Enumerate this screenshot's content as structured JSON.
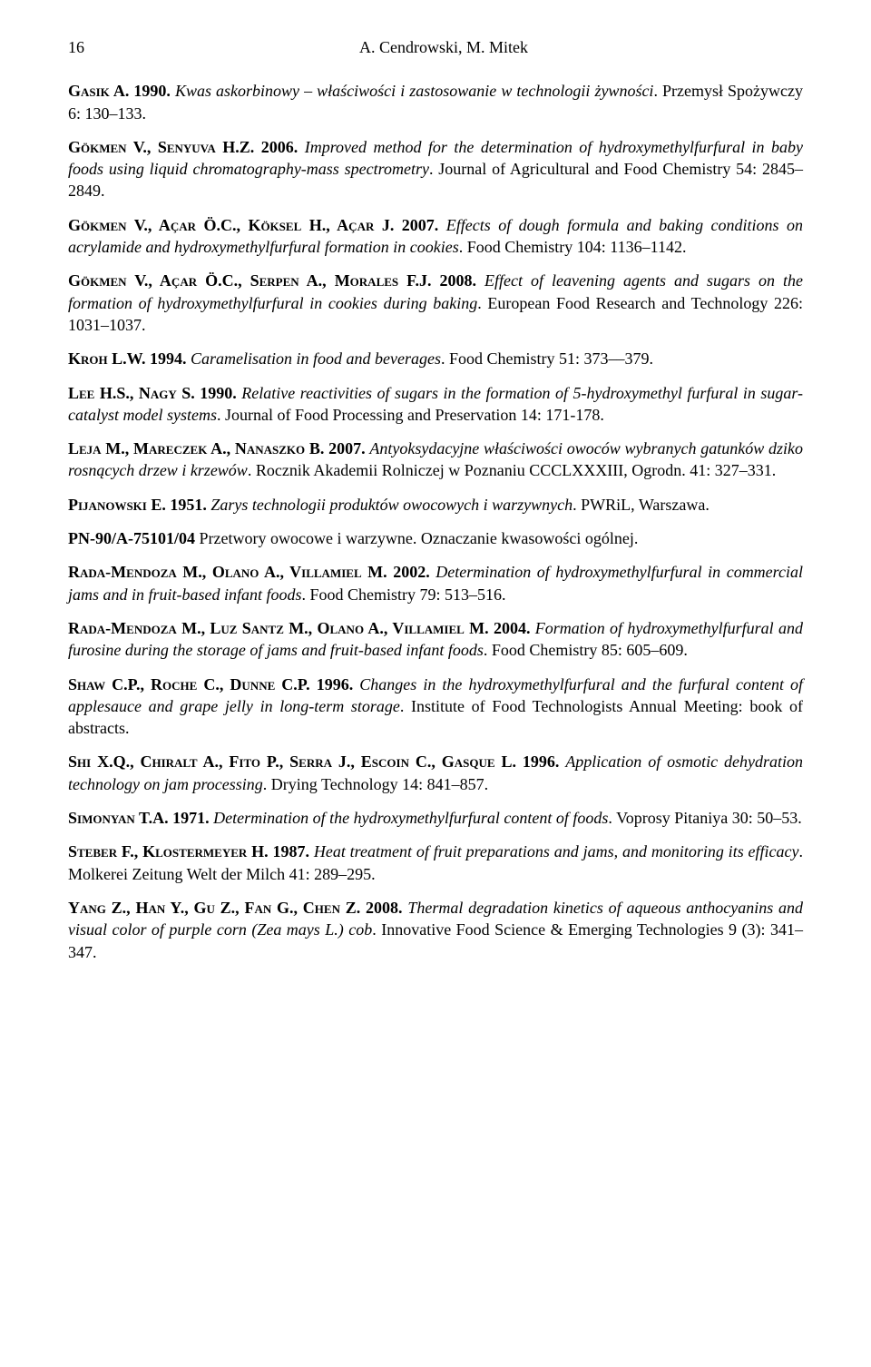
{
  "page_number": "16",
  "header_authors": "A. Cendrowski, M. Mitek",
  "references": [
    {
      "authors": "Gasik A.",
      "year": "1990.",
      "title": "Kwas askorbinowy – właściwości i zastosowanie w technologii żywności",
      "source": ". Przemysł Spożywczy 6: 130–133."
    },
    {
      "authors": "Gökmen V., Senyuva H.Z.",
      "year": "2006.",
      "title": "Improved method for the determination of hydroxymethylfurfural in baby foods using liquid chromatography-mass spectrometry",
      "source": ". Journal of Agricultural and Food Chemistry 54: 2845–2849."
    },
    {
      "authors": "Gökmen V., Açar Ö.C., Köksel H., Açar J.",
      "year": "2007.",
      "title": "Effects of dough formula and baking conditions on acrylamide and hydroxymethylfurfural formation in cookies",
      "source": ". Food Chemistry 104: 1136–1142."
    },
    {
      "authors": "Gökmen V., Açar Ö.C., Serpen A., Morales F.J.",
      "year": "2008.",
      "title": "Effect of leavening agents and sugars on the formation of hydroxymethylfurfural in cookies during baking",
      "source": ". European Food Research and Technology 226: 1031–1037."
    },
    {
      "authors": "Kroh L.W.",
      "year": "1994.",
      "title": "Caramelisation in food and beverages",
      "source": ". Food Chemistry 51: 373––379."
    },
    {
      "authors": "Lee H.S., Nagy S.",
      "year": "1990.",
      "title": "Relative reactivities of sugars in the formation of 5-hydroxymethyl furfural in sugar-catalyst model systems",
      "source": ". Journal of Food Processing and Preservation 14: 171-178."
    },
    {
      "authors": "Leja M., Mareczek A., Nanaszko B.",
      "year": "2007.",
      "title": "Antyoksydacyjne właściwości owoców wybranych gatunków dziko rosnących drzew i krzewów",
      "source": ". Rocznik Akademii Rolniczej w Poznaniu CCCLXXXIII, Ogrodn. 41: 327–331."
    },
    {
      "authors": "Pijanowski E.",
      "year": "1951.",
      "title": "Zarys technologii produktów owocowych i warzywnych",
      "source": ". PWRiL, Warszawa."
    },
    {
      "authors": "PN-90/A-75101/04",
      "year": "",
      "title": "",
      "source": " Przetwory owocowe i warzywne. Oznaczanie kwasowości ogólnej."
    },
    {
      "authors": "Rada-Mendoza M., Olano A., Villamiel M.",
      "year": "2002.",
      "title": "Determination of hydroxymethylfurfural in commercial jams and in fruit-based infant foods",
      "source": ". Food Chemistry 79: 513–516."
    },
    {
      "authors": "Rada-Mendoza M., Luz Santz M., Olano A., Villamiel M.",
      "year": "2004.",
      "title": "Formation of hydroxymethylfurfural and furosine during the storage of jams and fruit-based infant foods",
      "source": ". Food Chemistry 85: 605–609."
    },
    {
      "authors": "Shaw C.P., Roche C., Dunne C.P.",
      "year": "1996.",
      "title": "Changes in the hydroxymethylfurfural and the furfural content of applesauce and grape jelly in long-term storage",
      "source": ". Institute of Food Technologists Annual Meeting: book of abstracts."
    },
    {
      "authors": "Shi X.Q., Chiralt A., Fito P., Serra J., Escoin C., Gasque L.",
      "year": "1996.",
      "title": "Application of osmotic dehydration technology on jam processing",
      "source": ". Drying Technology 14: 841–857."
    },
    {
      "authors": "Simonyan T.A.",
      "year": "1971.",
      "title": "Determination of the hydroxymethylfurfural content of foods",
      "source": ". Voprosy Pitaniya 30: 50–53."
    },
    {
      "authors": "Steber F., Klostermeyer H.",
      "year": "1987.",
      "title": "Heat treatment of fruit preparations and jams, and monitoring its efficacy",
      "source": ". Molkerei Zeitung Welt der Milch 41: 289–295."
    },
    {
      "authors": "Yang Z., Han Y., Gu Z., Fan G., Chen Z.",
      "year": "2008.",
      "title": "Thermal degradation kinetics of aqueous anthocyanins and visual color of purple corn (Zea mays L.) cob",
      "source": ". Innovative Food Science & Emerging Technologies 9 (3): 341–347."
    }
  ]
}
